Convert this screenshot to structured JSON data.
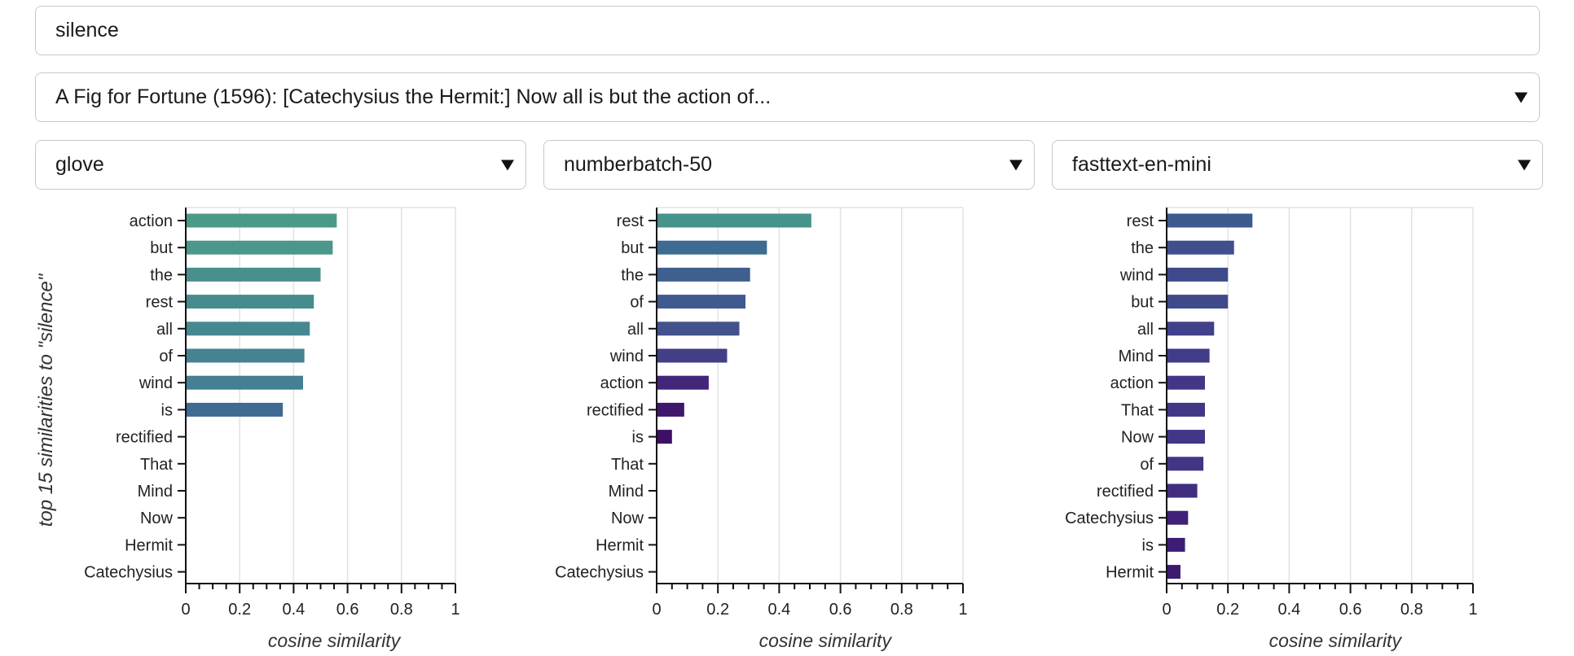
{
  "query_input": {
    "value": "silence"
  },
  "passage_select": {
    "value": "A Fig for Fortune (1596): [Catechysius the Hermit:] Now all is but the action of..."
  },
  "model_selects": [
    {
      "value": "glove"
    },
    {
      "value": "numberbatch-50"
    },
    {
      "value": "fasttext-en-mini"
    }
  ],
  "chart_data": [
    {
      "type": "bar",
      "orientation": "horizontal",
      "model": "glove",
      "categories": [
        "action",
        "but",
        "the",
        "rest",
        "all",
        "of",
        "wind",
        "is",
        "rectified",
        "That",
        "Mind",
        "Now",
        "Hermit",
        "Catechysius"
      ],
      "values": [
        0.56,
        0.545,
        0.5,
        0.475,
        0.46,
        0.44,
        0.435,
        0.36,
        0,
        0,
        0,
        0,
        0,
        0
      ],
      "colors": [
        "#4b9a87",
        "#4b978a",
        "#48908c",
        "#468c8e",
        "#468890",
        "#458391",
        "#447f93",
        "#3f6a92",
        null,
        null,
        null,
        null,
        null,
        null
      ],
      "xlabel": "cosine similarity",
      "ylabel": "top 15 similarities to \"silence\"",
      "xlim": [
        0,
        1
      ],
      "xticks": [
        "0",
        "0.2",
        "0.4",
        "0.6",
        "0.8",
        "1"
      ],
      "grid": "vertical"
    },
    {
      "type": "bar",
      "orientation": "horizontal",
      "model": "numberbatch-50",
      "categories": [
        "rest",
        "but",
        "the",
        "of",
        "all",
        "wind",
        "action",
        "rectified",
        "is",
        "That",
        "Mind",
        "Now",
        "Hermit",
        "Catechysius"
      ],
      "values": [
        0.505,
        0.36,
        0.305,
        0.29,
        0.27,
        0.23,
        0.17,
        0.09,
        0.05,
        0,
        0,
        0,
        0,
        0
      ],
      "colors": [
        "#46938b",
        "#3e6b91",
        "#3f5f8f",
        "#40598e",
        "#41528d",
        "#433f86",
        "#43257a",
        "#40156c",
        "#3d0f66",
        null,
        null,
        null,
        null,
        null
      ],
      "xlabel": "cosine similarity",
      "xlim": [
        0,
        1
      ],
      "xticks": [
        "0",
        "0.2",
        "0.4",
        "0.6",
        "0.8",
        "1"
      ],
      "grid": "vertical"
    },
    {
      "type": "bar",
      "orientation": "horizontal",
      "model": "fasttext-en-mini",
      "categories": [
        "rest",
        "the",
        "wind",
        "but",
        "all",
        "Mind",
        "action",
        "That",
        "Now",
        "of",
        "rectified",
        "Catechysius",
        "is",
        "Hermit"
      ],
      "values": [
        0.28,
        0.22,
        0.2,
        0.2,
        0.155,
        0.14,
        0.125,
        0.125,
        0.125,
        0.12,
        0.1,
        0.07,
        0.06,
        0.045
      ],
      "colors": [
        "#3d5a8d",
        "#3f508c",
        "#3f4a8b",
        "#3f4a8b",
        "#41408a",
        "#413c88",
        "#413786",
        "#413786",
        "#413786",
        "#413585",
        "#412d80",
        "#3f2177",
        "#3d1d74",
        "#3b1a70"
      ],
      "xlabel": "cosine similarity",
      "xlim": [
        0,
        1
      ],
      "xticks": [
        "0",
        "0.2",
        "0.4",
        "0.6",
        "0.8",
        "1"
      ],
      "grid": "vertical"
    }
  ]
}
